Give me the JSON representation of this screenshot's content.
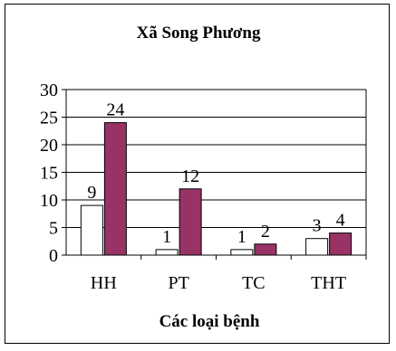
{
  "chart_data": {
    "type": "bar",
    "title": "Xã Song Phương",
    "xlabel": "Các loại bệnh",
    "ylabel": "",
    "categories": [
      "HH",
      "PT",
      "TC",
      "THT"
    ],
    "series": [
      {
        "values": [
          9,
          1,
          1,
          3
        ],
        "color": "#ffffff"
      },
      {
        "values": [
          24,
          12,
          2,
          4
        ],
        "color": "#993366"
      }
    ],
    "ylim": [
      0,
      30
    ],
    "yticks": [
      "0",
      "5",
      "10",
      "15",
      "20",
      "25",
      "30"
    ],
    "grid": true,
    "legend": "none",
    "data_labels": true
  }
}
